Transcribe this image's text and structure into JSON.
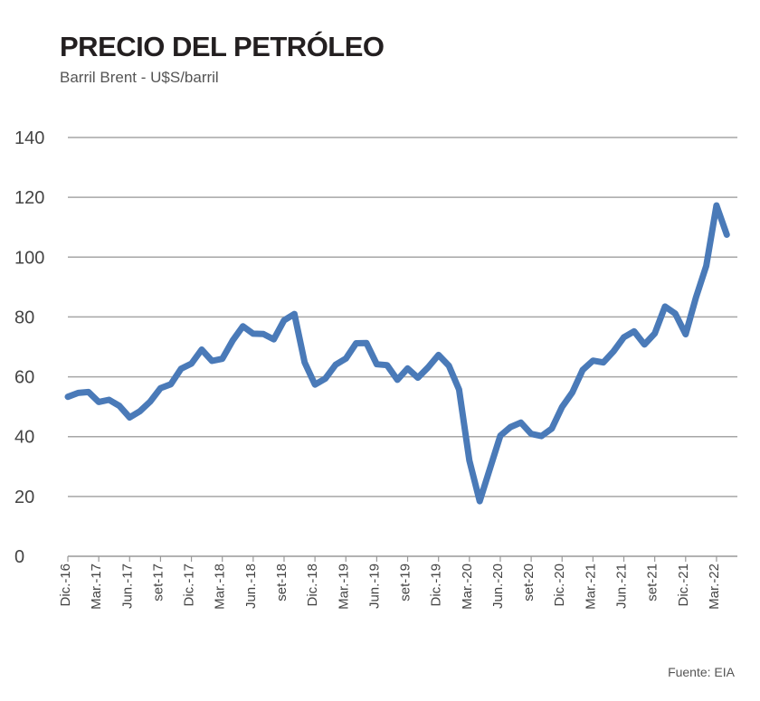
{
  "chart_data": {
    "type": "line",
    "title": "PRECIO DEL PETRÓLEO",
    "subtitle": "Barril Brent - U$S/barril",
    "source": "Fuente: EIA",
    "xlabel": "",
    "ylabel": "",
    "ylim": [
      0,
      140
    ],
    "y_ticks": [
      "0",
      "20",
      "40",
      "60",
      "80",
      "100",
      "120",
      "140"
    ],
    "x_tick_labels": [
      "Dic.-16",
      "Mar.-17",
      "Jun.-17",
      "set-17",
      "Dic.-17",
      "Mar.-18",
      "Jun.-18",
      "set-18",
      "Dic.-18",
      "Mar.-19",
      "Jun.-19",
      "set-19",
      "Dic.-19",
      "Mar.-20",
      "Jun.-20",
      "set-20",
      "Dic.-20",
      "Mar.-21",
      "Jun.-21",
      "set-21",
      "Dic.-21",
      "Mar.-22"
    ],
    "grid": "horizontal",
    "line_color": "#4a7ab8",
    "x": [
      "2016-12",
      "2017-01",
      "2017-02",
      "2017-03",
      "2017-04",
      "2017-05",
      "2017-06",
      "2017-07",
      "2017-08",
      "2017-09",
      "2017-10",
      "2017-11",
      "2017-12",
      "2018-01",
      "2018-02",
      "2018-03",
      "2018-04",
      "2018-05",
      "2018-06",
      "2018-07",
      "2018-08",
      "2018-09",
      "2018-10",
      "2018-11",
      "2018-12",
      "2019-01",
      "2019-02",
      "2019-03",
      "2019-04",
      "2019-05",
      "2019-06",
      "2019-07",
      "2019-08",
      "2019-09",
      "2019-10",
      "2019-11",
      "2019-12",
      "2020-01",
      "2020-02",
      "2020-03",
      "2020-04",
      "2020-05",
      "2020-06",
      "2020-07",
      "2020-08",
      "2020-09",
      "2020-10",
      "2020-11",
      "2020-12",
      "2021-01",
      "2021-02",
      "2021-03",
      "2021-04",
      "2021-05",
      "2021-06",
      "2021-07",
      "2021-08",
      "2021-09",
      "2021-10",
      "2021-11",
      "2021-12",
      "2022-01",
      "2022-02",
      "2022-03",
      "2022-04"
    ],
    "values": [
      53.3,
      54.6,
      54.9,
      51.6,
      52.3,
      50.3,
      46.4,
      48.5,
      51.7,
      56.2,
      57.5,
      62.7,
      64.4,
      69.1,
      65.3,
      66.0,
      72.1,
      76.9,
      74.4,
      74.3,
      72.5,
      78.9,
      81.0,
      64.8,
      57.4,
      59.4,
      64.0,
      66.1,
      71.2,
      71.3,
      64.2,
      63.9,
      59.0,
      62.8,
      59.7,
      63.2,
      67.3,
      63.7,
      55.7,
      32.0,
      18.4,
      29.4,
      40.3,
      43.2,
      44.7,
      40.9,
      40.2,
      42.7,
      49.9,
      54.8,
      62.3,
      65.4,
      64.8,
      68.5,
      73.2,
      75.2,
      70.8,
      74.5,
      83.5,
      81.1,
      74.2,
      86.5,
      97.1,
      117.3,
      107.5
    ]
  }
}
